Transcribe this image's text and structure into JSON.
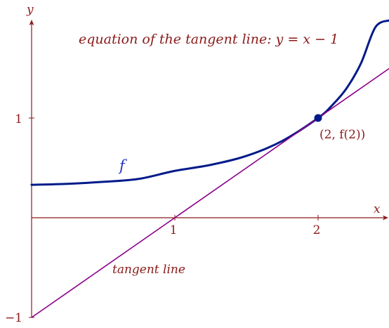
{
  "chart_data": {
    "type": "line",
    "xlabel": "x",
    "ylabel": "y",
    "xlim": [
      0,
      2.5
    ],
    "ylim": [
      -1,
      2.0
    ],
    "x_ticks": [
      1,
      2
    ],
    "x_tick_labels": [
      "1",
      "2"
    ],
    "y_ticks": [
      1,
      -1
    ],
    "y_tick_labels": [
      "1",
      "−1"
    ],
    "series": [
      {
        "name": "f",
        "color": "#001a8a",
        "x": [
          0,
          0.25,
          0.5,
          0.75,
          1.0,
          1.25,
          1.5,
          1.75,
          2.0,
          2.1,
          2.2,
          2.3,
          2.4,
          2.5
        ],
        "y": [
          0.33,
          0.34,
          0.36,
          0.39,
          0.47,
          0.53,
          0.62,
          0.77,
          1.0,
          1.13,
          1.3,
          1.55,
          1.91,
          1.98
        ]
      },
      {
        "name": "tangent line",
        "color": "#8b008b",
        "x": [
          0,
          2.5
        ],
        "y": [
          -1,
          1.5
        ]
      }
    ],
    "points": [
      {
        "x": 2,
        "y": 1,
        "label": "(2, f(2))",
        "color": "#001a8a"
      }
    ],
    "annotations": {
      "equation": "equation of the tangent line: y = x − 1",
      "f_label": "f",
      "tangent_label": "tangent line"
    },
    "colors": {
      "axis": "#8b1a1a",
      "text": "#8b1a1a",
      "curve": "#001a8a",
      "tangent": "#8b008b"
    }
  }
}
